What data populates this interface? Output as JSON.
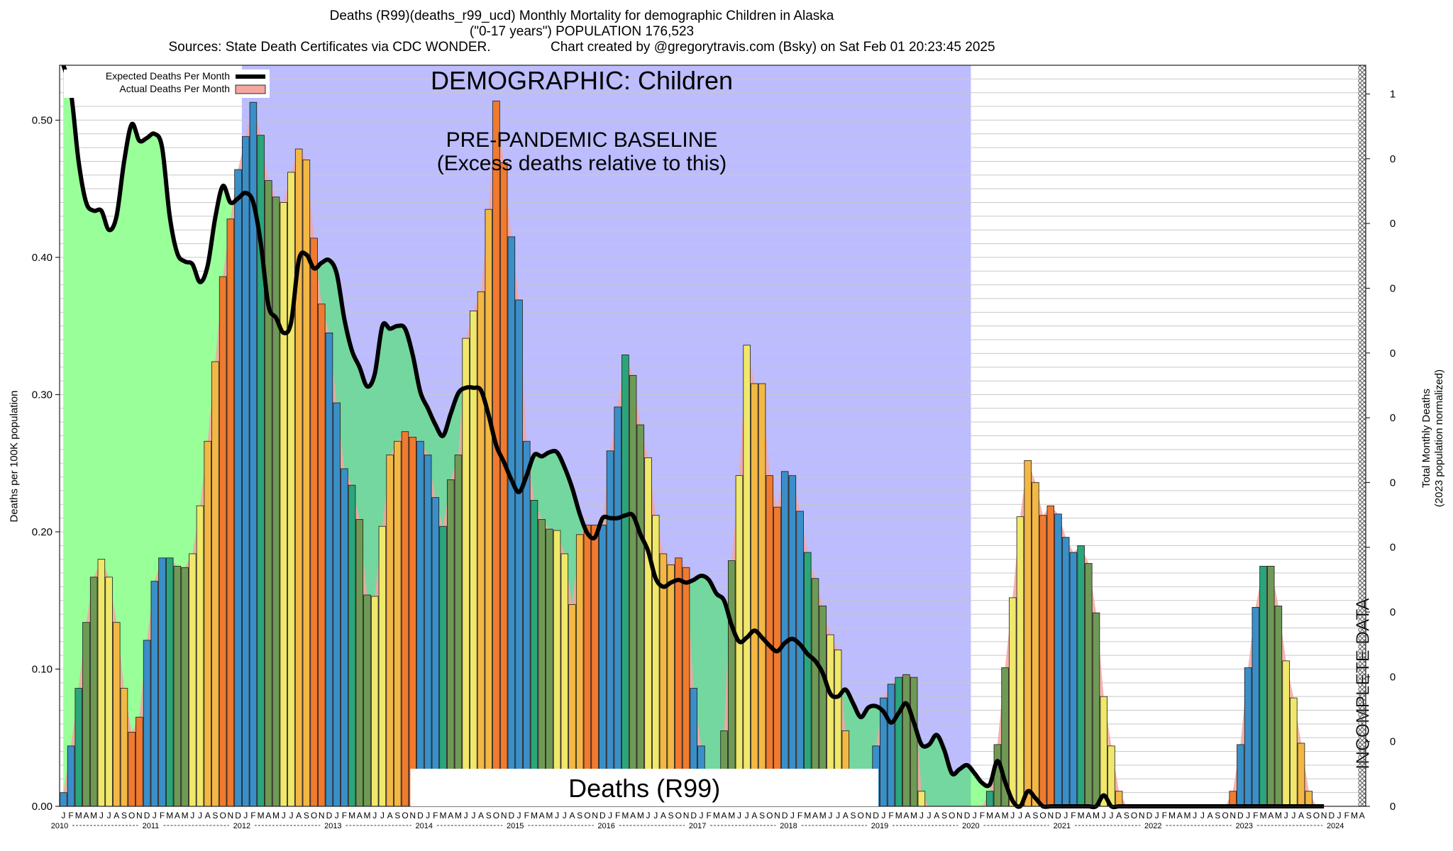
{
  "header": {
    "title": "Deaths (R99)(deaths_r99_ucd) Monthly Mortality for demographic Children in Alaska",
    "subtitle": "(\"0-17 years\") POPULATION 176,523",
    "sources": "Sources: State Death Certificates via CDC WONDER.",
    "credit": "Chart created by @gregorytravis.com (Bsky) on Sat Feb 01 20:23:45 2025"
  },
  "colors": {
    "expected_line": "#000000",
    "actual_fill": "#f4a6a0",
    "baseline_band": "#bcbcff",
    "early_green": "#99ff99",
    "mid_green": "#6fd89a",
    "incomplete_hatch": "#6a6a6a",
    "bar_season_colors": [
      "#3a8fc8",
      "#2aa67a",
      "#6e9a55",
      "#f0e86a",
      "#f3b844",
      "#f07a2e"
    ]
  },
  "chart_data": {
    "type": "bar",
    "start": "2010-01",
    "ylabel": "Deaths per 100K population",
    "y2label": [
      "Total Monthly Deaths",
      "(2023 population normalized)"
    ],
    "ylim": [
      0,
      0.54
    ],
    "yticks": [
      "0.00",
      "0.10",
      "0.20",
      "0.30",
      "0.40",
      "0.50"
    ],
    "y2ticks": [
      "0",
      "0",
      "0",
      "0",
      "0",
      "0",
      "0",
      "0",
      "0",
      "0",
      "0",
      "1"
    ],
    "month_letters": [
      "J",
      "F",
      "M",
      "A",
      "M",
      "J",
      "J",
      "A",
      "S",
      "O",
      "N",
      "D"
    ],
    "years": [
      "2010",
      "2011",
      "2012",
      "2013",
      "2014",
      "2015",
      "2016",
      "2017",
      "2018",
      "2019",
      "2020",
      "2021",
      "2022",
      "2023",
      "2024"
    ],
    "grid": true,
    "legend_position": "top-left",
    "legend": [
      "Expected Deaths Per Month",
      "Actual Deaths Per Month"
    ],
    "annotations": {
      "demographic": "DEMOGRAPHIC: Children",
      "baseline": [
        "PRE-PANDEMIC BASELINE",
        "(Excess deaths relative to this)"
      ],
      "cause": "Deaths (R99)",
      "incomplete": "INCOMPLETE DATA"
    },
    "baseline_period": [
      "2012-01",
      "2019-12"
    ],
    "incomplete_from": "2024-04",
    "actual": [
      0.01,
      0.044,
      0.086,
      0.134,
      0.167,
      0.18,
      0.167,
      0.134,
      0.086,
      0.054,
      0.065,
      0.121,
      0.164,
      0.181,
      0.181,
      0.175,
      0.174,
      0.184,
      0.219,
      0.266,
      0.324,
      0.386,
      0.428,
      0.464,
      0.488,
      0.513,
      0.489,
      0.456,
      0.444,
      0.44,
      0.462,
      0.479,
      0.471,
      0.414,
      0.366,
      0.345,
      0.294,
      0.246,
      0.234,
      0.209,
      0.154,
      0.153,
      0.204,
      0.256,
      0.266,
      0.273,
      0.269,
      0.266,
      0.256,
      0.225,
      0.204,
      0.238,
      0.256,
      0.341,
      0.361,
      0.375,
      0.435,
      0.514,
      0.469,
      0.415,
      0.369,
      0.266,
      0.223,
      0.209,
      0.202,
      0.201,
      0.184,
      0.147,
      0.198,
      0.205,
      0.205,
      0.205,
      0.259,
      0.291,
      0.329,
      0.314,
      0.278,
      0.254,
      0.212,
      0.184,
      0.176,
      0.181,
      0.174,
      0.086,
      0.044,
      0,
      0,
      0.055,
      0.179,
      0.241,
      0.336,
      0.308,
      0.308,
      0.241,
      0.218,
      0.244,
      0.241,
      0.215,
      0.185,
      0.166,
      0.146,
      0.125,
      0.114,
      0.055,
      0.01,
      0,
      0.011,
      0.044,
      0.079,
      0.089,
      0.094,
      0.096,
      0.094,
      0.011,
      0,
      0,
      0,
      0,
      0,
      0,
      0,
      0,
      0.011,
      0.045,
      0.101,
      0.152,
      0.211,
      0.252,
      0.236,
      0.212,
      0.219,
      0.213,
      0.196,
      0.185,
      0.19,
      0.177,
      0.141,
      0.08,
      0.044,
      0.011,
      0,
      0,
      0,
      0,
      0,
      0,
      0,
      0,
      0,
      0,
      0,
      0,
      0,
      0,
      0.011,
      0.045,
      0.101,
      0.145,
      0.175,
      0.175,
      0.146,
      0.106,
      0.079,
      0.046,
      0.011,
      0,
      0,
      0,
      0,
      0,
      0,
      0
    ],
    "expected": [
      0.54,
      0.52,
      0.47,
      0.44,
      0.434,
      0.434,
      0.42,
      0.43,
      0.47,
      0.497,
      0.485,
      0.487,
      0.49,
      0.48,
      0.43,
      0.403,
      0.397,
      0.395,
      0.382,
      0.394,
      0.429,
      0.452,
      0.44,
      0.443,
      0.447,
      0.44,
      0.41,
      0.365,
      0.356,
      0.345,
      0.353,
      0.398,
      0.402,
      0.392,
      0.396,
      0.398,
      0.388,
      0.355,
      0.332,
      0.32,
      0.306,
      0.315,
      0.35,
      0.348,
      0.35,
      0.348,
      0.329,
      0.302,
      0.29,
      0.278,
      0.27,
      0.286,
      0.301,
      0.305,
      0.305,
      0.303,
      0.285,
      0.263,
      0.251,
      0.238,
      0.229,
      0.241,
      0.256,
      0.255,
      0.258,
      0.258,
      0.247,
      0.232,
      0.213,
      0.199,
      0.196,
      0.21,
      0.21,
      0.21,
      0.212,
      0.212,
      0.198,
      0.186,
      0.166,
      0.16,
      0.163,
      0.165,
      0.163,
      0.165,
      0.168,
      0.165,
      0.155,
      0.15,
      0.132,
      0.12,
      0.123,
      0.128,
      0.123,
      0.117,
      0.113,
      0.119,
      0.122,
      0.118,
      0.111,
      0.106,
      0.097,
      0.082,
      0.08,
      0.085,
      0.075,
      0.065,
      0.072,
      0.073,
      0.069,
      0.061,
      0.068,
      0.075,
      0.061,
      0.045,
      0.045,
      0.052,
      0.041,
      0.024,
      0.027,
      0.03,
      0.024,
      0.017,
      0.016,
      0.033,
      0.018,
      0.004,
      0,
      0.011,
      0.006,
      0,
      0,
      0,
      0,
      0,
      0,
      0,
      0,
      0.008,
      0,
      0,
      0,
      0,
      0,
      0,
      0,
      0,
      0,
      0,
      0,
      0,
      0,
      0,
      0,
      0,
      0,
      0,
      0,
      0,
      0,
      0,
      0,
      0,
      0,
      0,
      0,
      0,
      0,
      0
    ]
  }
}
